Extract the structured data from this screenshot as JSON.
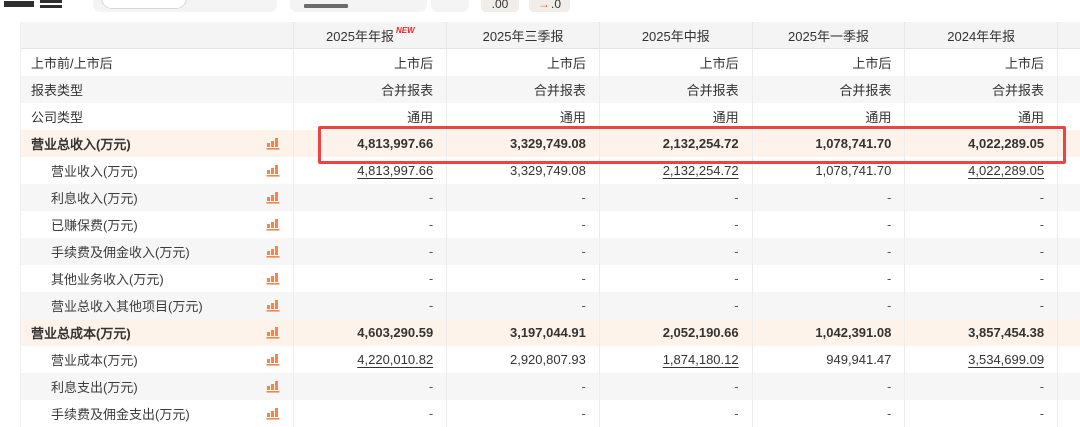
{
  "toolbar": {
    "decimal_button_00": ".00",
    "decimal_shift_arrow": "→",
    "decimal_shift_text": ".0"
  },
  "table": {
    "header": {
      "columns": [
        {
          "label": "2025年年报",
          "badge": "NEW"
        },
        {
          "label": "2025年三季报",
          "badge": ""
        },
        {
          "label": "2025年中报",
          "badge": ""
        },
        {
          "label": "2025年一季报",
          "badge": ""
        },
        {
          "label": "2024年年报",
          "badge": ""
        }
      ]
    },
    "rows": [
      {
        "label": "上市前/上市后",
        "level": 0,
        "icon": false,
        "style": "plain",
        "cells": [
          {
            "v": "上市后"
          },
          {
            "v": "上市后"
          },
          {
            "v": "上市后"
          },
          {
            "v": "上市后"
          },
          {
            "v": "上市后"
          }
        ]
      },
      {
        "label": "报表类型",
        "level": 0,
        "icon": false,
        "style": "stripe",
        "cells": [
          {
            "v": "合并报表"
          },
          {
            "v": "合并报表"
          },
          {
            "v": "合并报表"
          },
          {
            "v": "合并报表"
          },
          {
            "v": "合并报表"
          }
        ]
      },
      {
        "label": "公司类型",
        "level": 0,
        "icon": false,
        "style": "plain",
        "cells": [
          {
            "v": "通用"
          },
          {
            "v": "通用"
          },
          {
            "v": "通用"
          },
          {
            "v": "通用"
          },
          {
            "v": "通用"
          }
        ]
      },
      {
        "label": "营业总收入(万元)",
        "level": 0,
        "icon": true,
        "style": "total",
        "highlighted": true,
        "cells": [
          {
            "v": "4,813,997.66"
          },
          {
            "v": "3,329,749.08"
          },
          {
            "v": "2,132,254.72"
          },
          {
            "v": "1,078,741.70"
          },
          {
            "v": "4,022,289.05"
          }
        ]
      },
      {
        "label": "营业收入(万元)",
        "level": 1,
        "icon": true,
        "style": "plain",
        "cells": [
          {
            "v": "4,813,997.66",
            "link": true
          },
          {
            "v": "3,329,749.08"
          },
          {
            "v": "2,132,254.72",
            "link": true
          },
          {
            "v": "1,078,741.70"
          },
          {
            "v": "4,022,289.05",
            "link": true
          }
        ]
      },
      {
        "label": "利息收入(万元)",
        "level": 1,
        "icon": true,
        "style": "stripe",
        "cells": [
          {
            "v": "-"
          },
          {
            "v": "-"
          },
          {
            "v": "-"
          },
          {
            "v": "-"
          },
          {
            "v": "-"
          }
        ]
      },
      {
        "label": "已赚保费(万元)",
        "level": 1,
        "icon": true,
        "style": "plain",
        "cells": [
          {
            "v": "-"
          },
          {
            "v": "-"
          },
          {
            "v": "-"
          },
          {
            "v": "-"
          },
          {
            "v": "-"
          }
        ]
      },
      {
        "label": "手续费及佣金收入(万元)",
        "level": 1,
        "icon": true,
        "style": "stripe",
        "cells": [
          {
            "v": "-"
          },
          {
            "v": "-"
          },
          {
            "v": "-"
          },
          {
            "v": "-"
          },
          {
            "v": "-"
          }
        ]
      },
      {
        "label": "其他业务收入(万元)",
        "level": 1,
        "icon": true,
        "style": "plain",
        "cells": [
          {
            "v": "-"
          },
          {
            "v": "-"
          },
          {
            "v": "-"
          },
          {
            "v": "-"
          },
          {
            "v": "-"
          }
        ]
      },
      {
        "label": "营业总收入其他项目(万元)",
        "level": 1,
        "icon": true,
        "style": "stripe",
        "cells": [
          {
            "v": "-"
          },
          {
            "v": "-"
          },
          {
            "v": "-"
          },
          {
            "v": "-"
          },
          {
            "v": "-"
          }
        ]
      },
      {
        "label": "营业总成本(万元)",
        "level": 0,
        "icon": true,
        "style": "total",
        "cells": [
          {
            "v": "4,603,290.59"
          },
          {
            "v": "3,197,044.91"
          },
          {
            "v": "2,052,190.66"
          },
          {
            "v": "1,042,391.08"
          },
          {
            "v": "3,857,454.38"
          }
        ]
      },
      {
        "label": "营业成本(万元)",
        "level": 1,
        "icon": true,
        "style": "plain",
        "cells": [
          {
            "v": "4,220,010.82",
            "link": true
          },
          {
            "v": "2,920,807.93"
          },
          {
            "v": "1,874,180.12",
            "link": true
          },
          {
            "v": "949,941.47"
          },
          {
            "v": "3,534,699.09",
            "link": true
          }
        ]
      },
      {
        "label": "利息支出(万元)",
        "level": 1,
        "icon": true,
        "style": "stripe",
        "cells": [
          {
            "v": "-"
          },
          {
            "v": "-"
          },
          {
            "v": "-"
          },
          {
            "v": "-"
          },
          {
            "v": "-"
          }
        ]
      },
      {
        "label": "手续费及佣金支出(万元)",
        "level": 1,
        "icon": true,
        "style": "plain",
        "cells": [
          {
            "v": "-"
          },
          {
            "v": "-"
          },
          {
            "v": "-"
          },
          {
            "v": "-"
          },
          {
            "v": "-"
          }
        ]
      }
    ]
  },
  "colors": {
    "accent_orange": "#f5854a",
    "highlight_red": "#ed4343",
    "badge_red": "#f5222d",
    "total_row_bg": "#fdf3ea",
    "stripe_bg": "#f6f6f6",
    "header_bg": "#f4f4f4"
  }
}
